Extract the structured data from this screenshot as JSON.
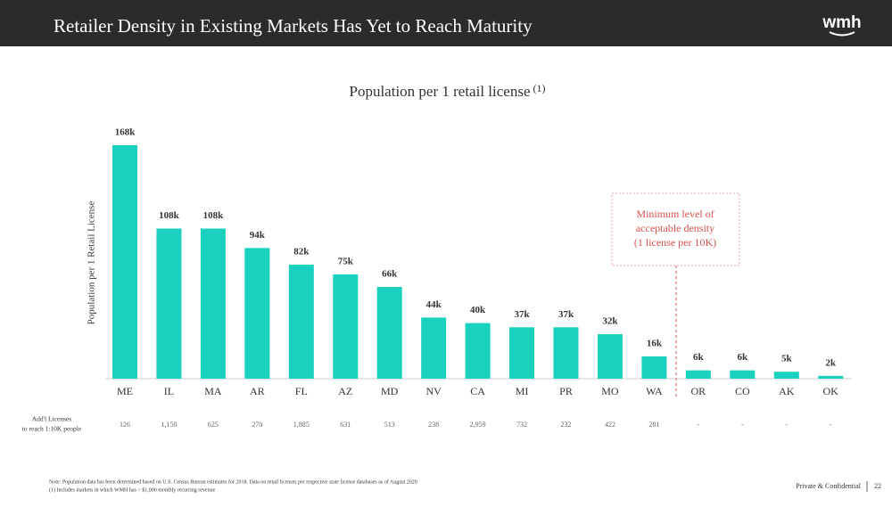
{
  "header": {
    "title": "Retailer Density in Existing Markets Has Yet to Reach Maturity",
    "logo": "wmh"
  },
  "chart_data": {
    "type": "bar",
    "title": "Population per 1 retail license",
    "title_note": "(1)",
    "y_label": "Population per 1 Retail License",
    "categories": [
      "ME",
      "IL",
      "MA",
      "AR",
      "FL",
      "AZ",
      "MD",
      "NV",
      "CA",
      "MI",
      "PR",
      "MO",
      "WA",
      "OR",
      "CO",
      "AK",
      "OK"
    ],
    "values": [
      168,
      108,
      108,
      94,
      82,
      75,
      66,
      44,
      40,
      37,
      37,
      32,
      16,
      6,
      6,
      5,
      2
    ],
    "value_labels": [
      "168k",
      "108k",
      "108k",
      "94k",
      "82k",
      "75k",
      "66k",
      "44k",
      "40k",
      "37k",
      "37k",
      "32k",
      "16k",
      "6k",
      "6k",
      "5k",
      "2k"
    ],
    "color": "#19d1be",
    "annotation": [
      "Minimum level of",
      "acceptable density",
      "(1 license per 10K)"
    ]
  },
  "licenses_row": {
    "label": [
      "Add'l Licenses",
      "to reach 1:10K people"
    ],
    "values": [
      "126",
      "1,150",
      "625",
      "270",
      "1,885",
      "631",
      "513",
      "238",
      "2,959",
      "732",
      "232",
      "422",
      "281",
      "-",
      "-",
      "-",
      "-"
    ]
  },
  "footer": {
    "notes": [
      "Note: Population data has been determined based on U.S. Census Bureau estimates for 2018. Data on retail licenses per respective state license databases as of August 2020",
      "(1)     Includes markets in which WMH has > $1,000 monthly recurring revenue"
    ],
    "confidential": "Private & Confidential",
    "page": "22"
  }
}
